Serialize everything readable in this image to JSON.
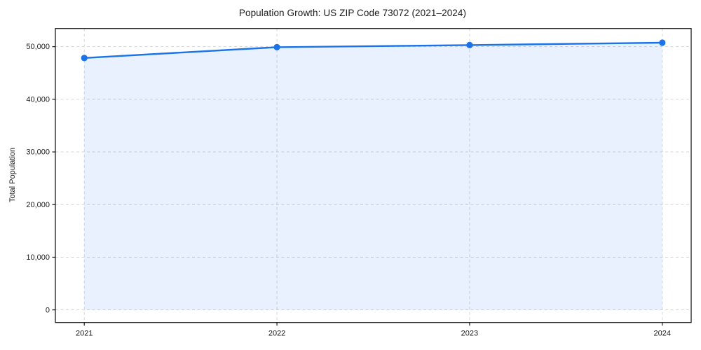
{
  "chart_data": {
    "type": "area",
    "title": "Population Growth: US ZIP Code 73072 (2021–2024)",
    "xlabel": "",
    "ylabel": "Total Population",
    "categories": [
      2021,
      2022,
      2023,
      2024
    ],
    "series": [
      {
        "name": "Total Population",
        "values": [
          47850,
          49900,
          50300,
          50750
        ]
      }
    ],
    "yticks": [
      0,
      10000,
      20000,
      30000,
      40000,
      50000
    ],
    "ytick_labels": [
      "0",
      "10,000",
      "20,000",
      "30,000",
      "40,000",
      "50,000"
    ],
    "xtick_labels": [
      "2021",
      "2022",
      "2023",
      "2024"
    ],
    "ylim": [
      -2400,
      53450
    ],
    "xlim": [
      2020.85,
      2024.15
    ],
    "grid": true,
    "grid_style": "dashed",
    "legend": "none",
    "colors": {
      "line": "#1a73e8",
      "marker": "#1a73e8",
      "fill": "#1a73e8",
      "fill_opacity": 0.1,
      "grid": "#d6d6d6",
      "spine": "#1a1a1a",
      "text": "#1a1a1a",
      "background": "#ffffff"
    }
  }
}
